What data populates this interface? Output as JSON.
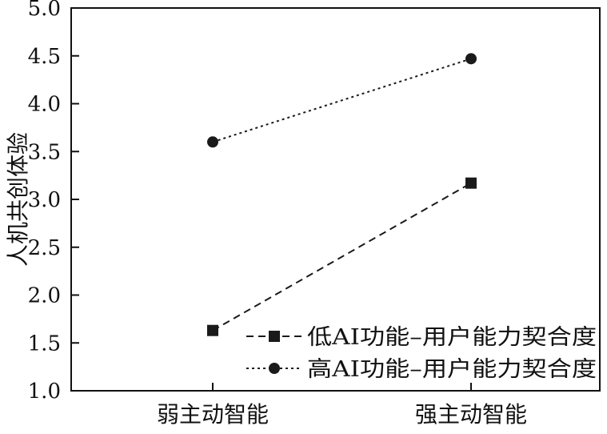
{
  "chart_data": {
    "type": "line",
    "title": "",
    "xlabel": "",
    "ylabel": "人机共创体验",
    "categories": [
      "弱主动智能",
      "强主动智能"
    ],
    "ylim": [
      1.0,
      5.0
    ],
    "yticks": [
      "1.0",
      "1.5",
      "2.0",
      "2.5",
      "3.0",
      "3.5",
      "4.0",
      "4.5",
      "5.0"
    ],
    "grid": false,
    "legend_position": "bottom-right",
    "series": [
      {
        "name": "低AI功能–用户能力契合度",
        "values": [
          1.63,
          3.17
        ],
        "marker": "square",
        "line_style": "dashed",
        "color": "#1a1a1a"
      },
      {
        "name": "高AI功能–用户能力契合度",
        "values": [
          3.6,
          4.47
        ],
        "marker": "circle",
        "line_style": "dotted",
        "color": "#1a1a1a"
      }
    ]
  }
}
